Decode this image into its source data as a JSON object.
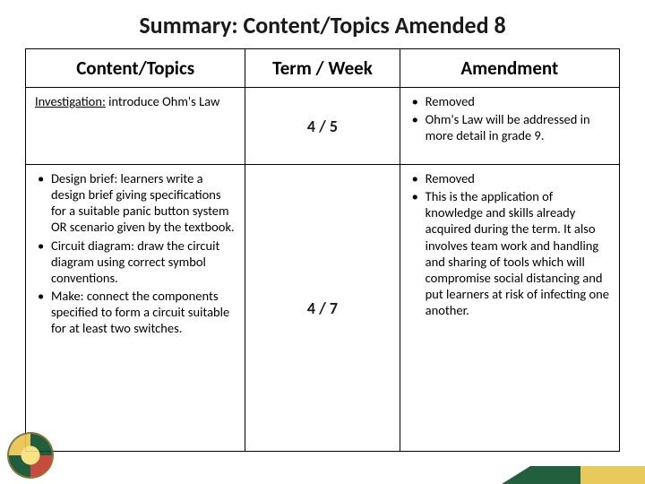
{
  "title": "Summary: Content/Topics Amended 8",
  "headers": {
    "content": "Content/Topics",
    "term": "Term / Week",
    "amendment": "Amendment"
  },
  "rows": [
    {
      "content_lead": "Investigation:",
      "content_rest": " introduce Ohm's Law",
      "term": "4 / 5",
      "amendments": [
        "Removed",
        "Ohm's Law will be addressed in more detail in grade 9."
      ]
    },
    {
      "content_items": [
        "Design brief: learners write a design brief giving specifications for a suitable panic button system OR scenario given by the textbook.",
        "Circuit diagram: draw the circuit diagram using correct symbol conventions.",
        "Make: connect the components specified to form a circuit suitable for at least two switches."
      ],
      "term": "4 / 7",
      "amendments": [
        "Removed",
        "This is the application of knowledge and skills already acquired during the term. It also involves team work and handling and sharing of tools which will compromise social distancing and put learners at risk of infecting one another."
      ]
    }
  ]
}
